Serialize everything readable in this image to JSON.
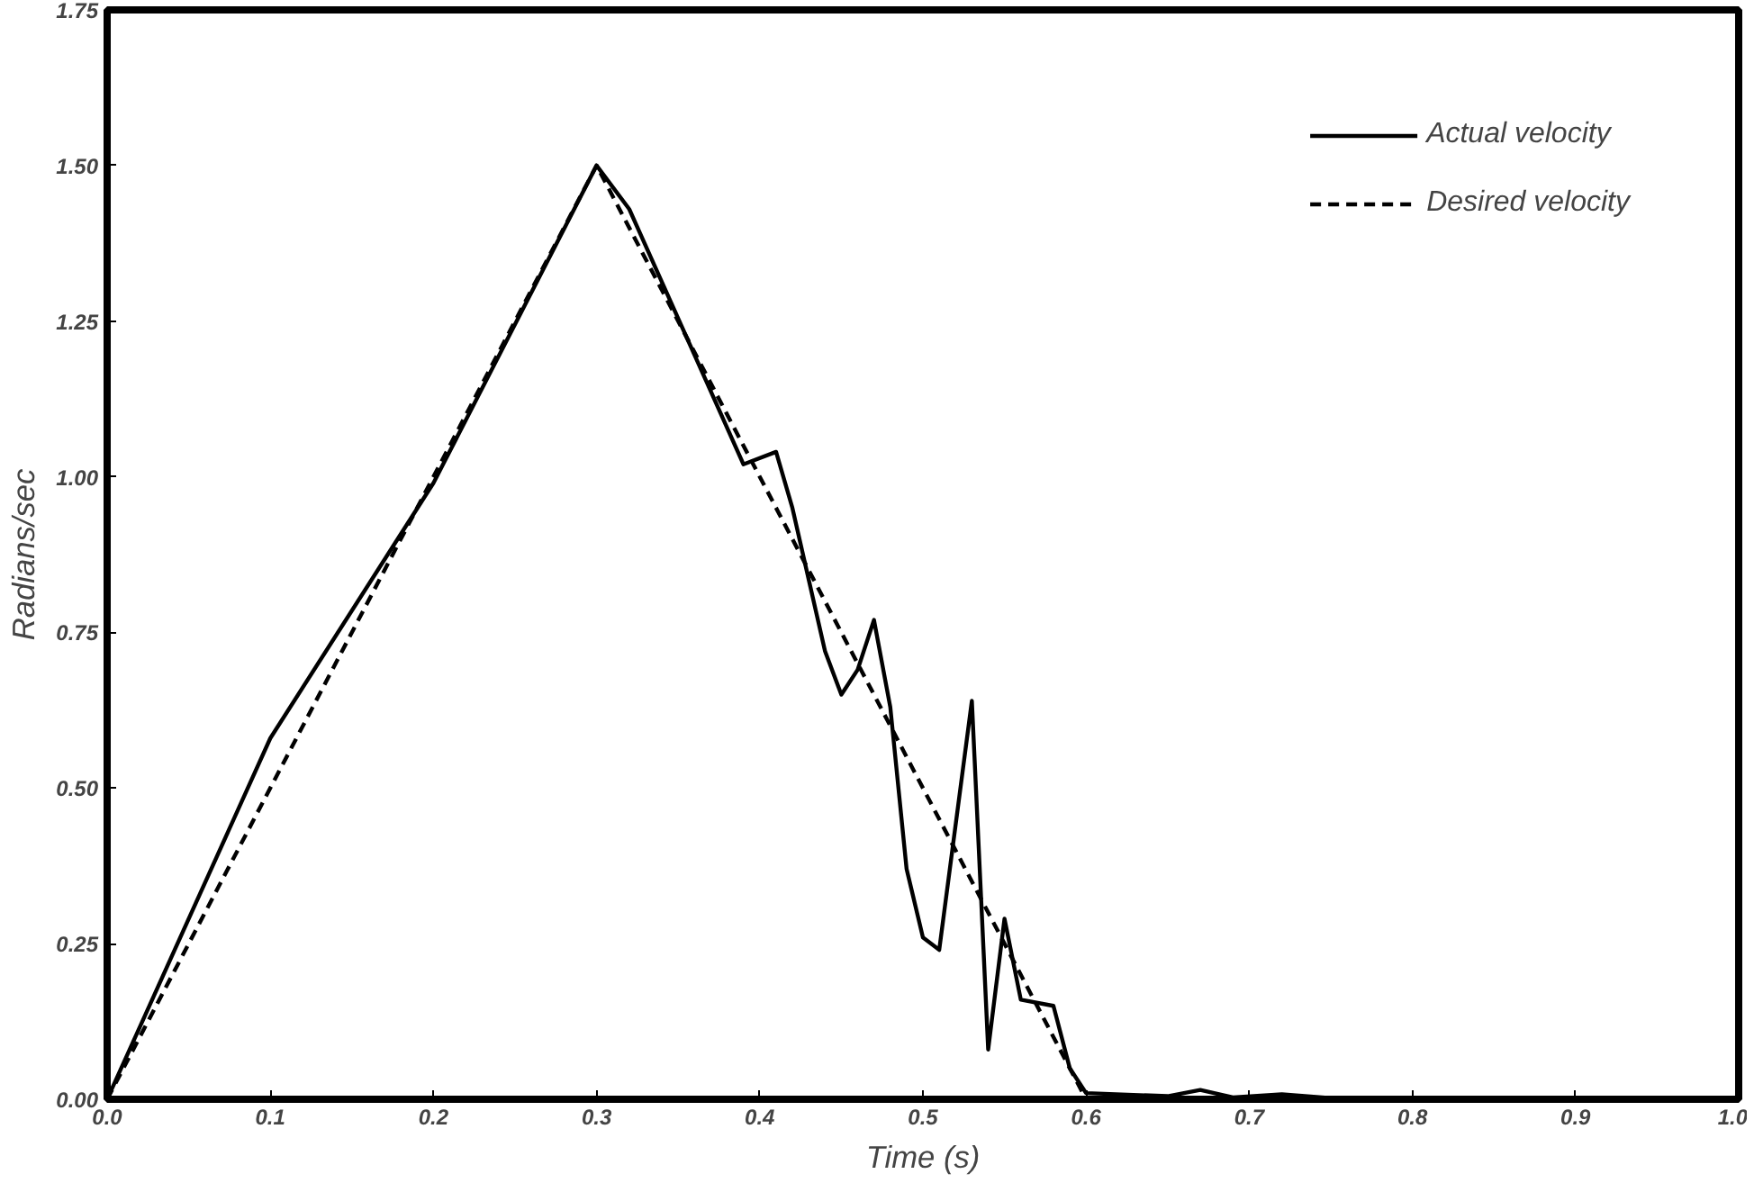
{
  "chart_data": {
    "type": "line",
    "xlabel": "Time (s)",
    "ylabel": "Radians/sec",
    "xlim": [
      0,
      1
    ],
    "xticks": [
      {
        "value": 0,
        "label": "0.0"
      },
      {
        "value": 0.1,
        "label": "0.1"
      },
      {
        "value": 0.2,
        "label": "0.2"
      },
      {
        "value": 0.3,
        "label": "0.3"
      },
      {
        "value": 0.4,
        "label": "0.4"
      },
      {
        "value": 0.5,
        "label": "0.5"
      },
      {
        "value": 0.6,
        "label": "0.6"
      },
      {
        "value": 0.7,
        "label": "0.7"
      },
      {
        "value": 0.8,
        "label": "0.8"
      },
      {
        "value": 0.9,
        "label": "0.9"
      },
      {
        "value": 1,
        "label": "1.0"
      }
    ],
    "ylim": [
      0,
      1.75
    ],
    "yticks": [
      {
        "value": 0,
        "label": "0.00"
      },
      {
        "value": 0.25,
        "label": "0.25"
      },
      {
        "value": 0.5,
        "label": "0.50"
      },
      {
        "value": 0.75,
        "label": "0.75"
      },
      {
        "value": 1,
        "label": "1.00"
      },
      {
        "value": 1.25,
        "label": "1.25"
      },
      {
        "value": 1.5,
        "label": "1.50"
      },
      {
        "value": 1.75,
        "label": "1.75"
      }
    ],
    "grid": false,
    "legend": "top right",
    "marker": "none",
    "series": [
      {
        "name": "Actual velocity",
        "color": "#000000",
        "line_style": "solid",
        "x": [
          0,
          0.1,
          0.2,
          0.3,
          0.32,
          0.39,
          0.41,
          0.42,
          0.44,
          0.45,
          0.46,
          0.47,
          0.48,
          0.49,
          0.5,
          0.51,
          0.53,
          0.54,
          0.55,
          0.56,
          0.58,
          0.59,
          0.6,
          0.65,
          0.67,
          0.69,
          0.72,
          0.75,
          1.0
        ],
        "values": [
          0,
          0.58,
          0.99,
          1.5,
          1.43,
          1.02,
          1.04,
          0.95,
          0.72,
          0.65,
          0.69,
          0.77,
          0.63,
          0.37,
          0.26,
          0.24,
          0.64,
          0.08,
          0.29,
          0.16,
          0.15,
          0.05,
          0.01,
          0.005,
          0.015,
          0.003,
          0.008,
          0.002,
          0
        ]
      },
      {
        "name": "Desired velocity",
        "color": "#000000",
        "line_style": "dashed",
        "x": [
          0,
          0.3,
          0.6,
          1.0
        ],
        "values": [
          0,
          1.5,
          0,
          0
        ]
      }
    ]
  }
}
